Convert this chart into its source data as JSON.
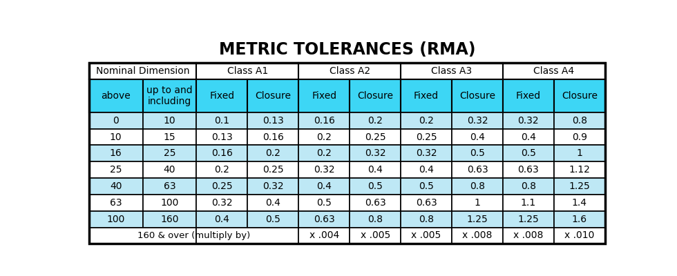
{
  "title": "METRIC TOLERANCES (RMA)",
  "title_fontsize": 17,
  "title_fontweight": "bold",
  "bg_color": "#ffffff",
  "cyan_color": "#3DD6F5",
  "light_blue_color": "#BEE8F5",
  "white_color": "#ffffff",
  "border_color": "#000000",
  "header2_row": [
    "above",
    "up to and\nincluding",
    "Fixed",
    "Closure",
    "Fixed",
    "Closure",
    "Fixed",
    "Closure",
    "Fixed",
    "Closure"
  ],
  "data_rows": [
    [
      "0",
      "10",
      "0.1",
      "0.13",
      "0.16",
      "0.2",
      "0.2",
      "0.32",
      "0.32",
      "0.8"
    ],
    [
      "10",
      "15",
      "0.13",
      "0.16",
      "0.2",
      "0.25",
      "0.25",
      "0.4",
      "0.4",
      "0.9"
    ],
    [
      "16",
      "25",
      "0.16",
      "0.2",
      "0.2",
      "0.32",
      "0.32",
      "0.5",
      "0.5",
      "1"
    ],
    [
      "25",
      "40",
      "0.2",
      "0.25",
      "0.32",
      "0.4",
      "0.4",
      "0.63",
      "0.63",
      "1.12"
    ],
    [
      "40",
      "63",
      "0.25",
      "0.32",
      "0.4",
      "0.5",
      "0.5",
      "0.8",
      "0.8",
      "1.25"
    ],
    [
      "63",
      "100",
      "0.32",
      "0.4",
      "0.5",
      "0.63",
      "0.63",
      "1",
      "1.1",
      "1.4"
    ],
    [
      "100",
      "160",
      "0.4",
      "0.5",
      "0.63",
      "0.8",
      "0.8",
      "1.25",
      "1.25",
      "1.6"
    ]
  ],
  "last_row": [
    "160 & over (multiply by)",
    "",
    "",
    "",
    "x .004",
    "x .005",
    "x .005",
    "x .008",
    "x .008",
    "x .010"
  ],
  "row_bg": [
    "light_blue",
    "white",
    "light_blue",
    "white",
    "light_blue",
    "white",
    "light_blue"
  ]
}
